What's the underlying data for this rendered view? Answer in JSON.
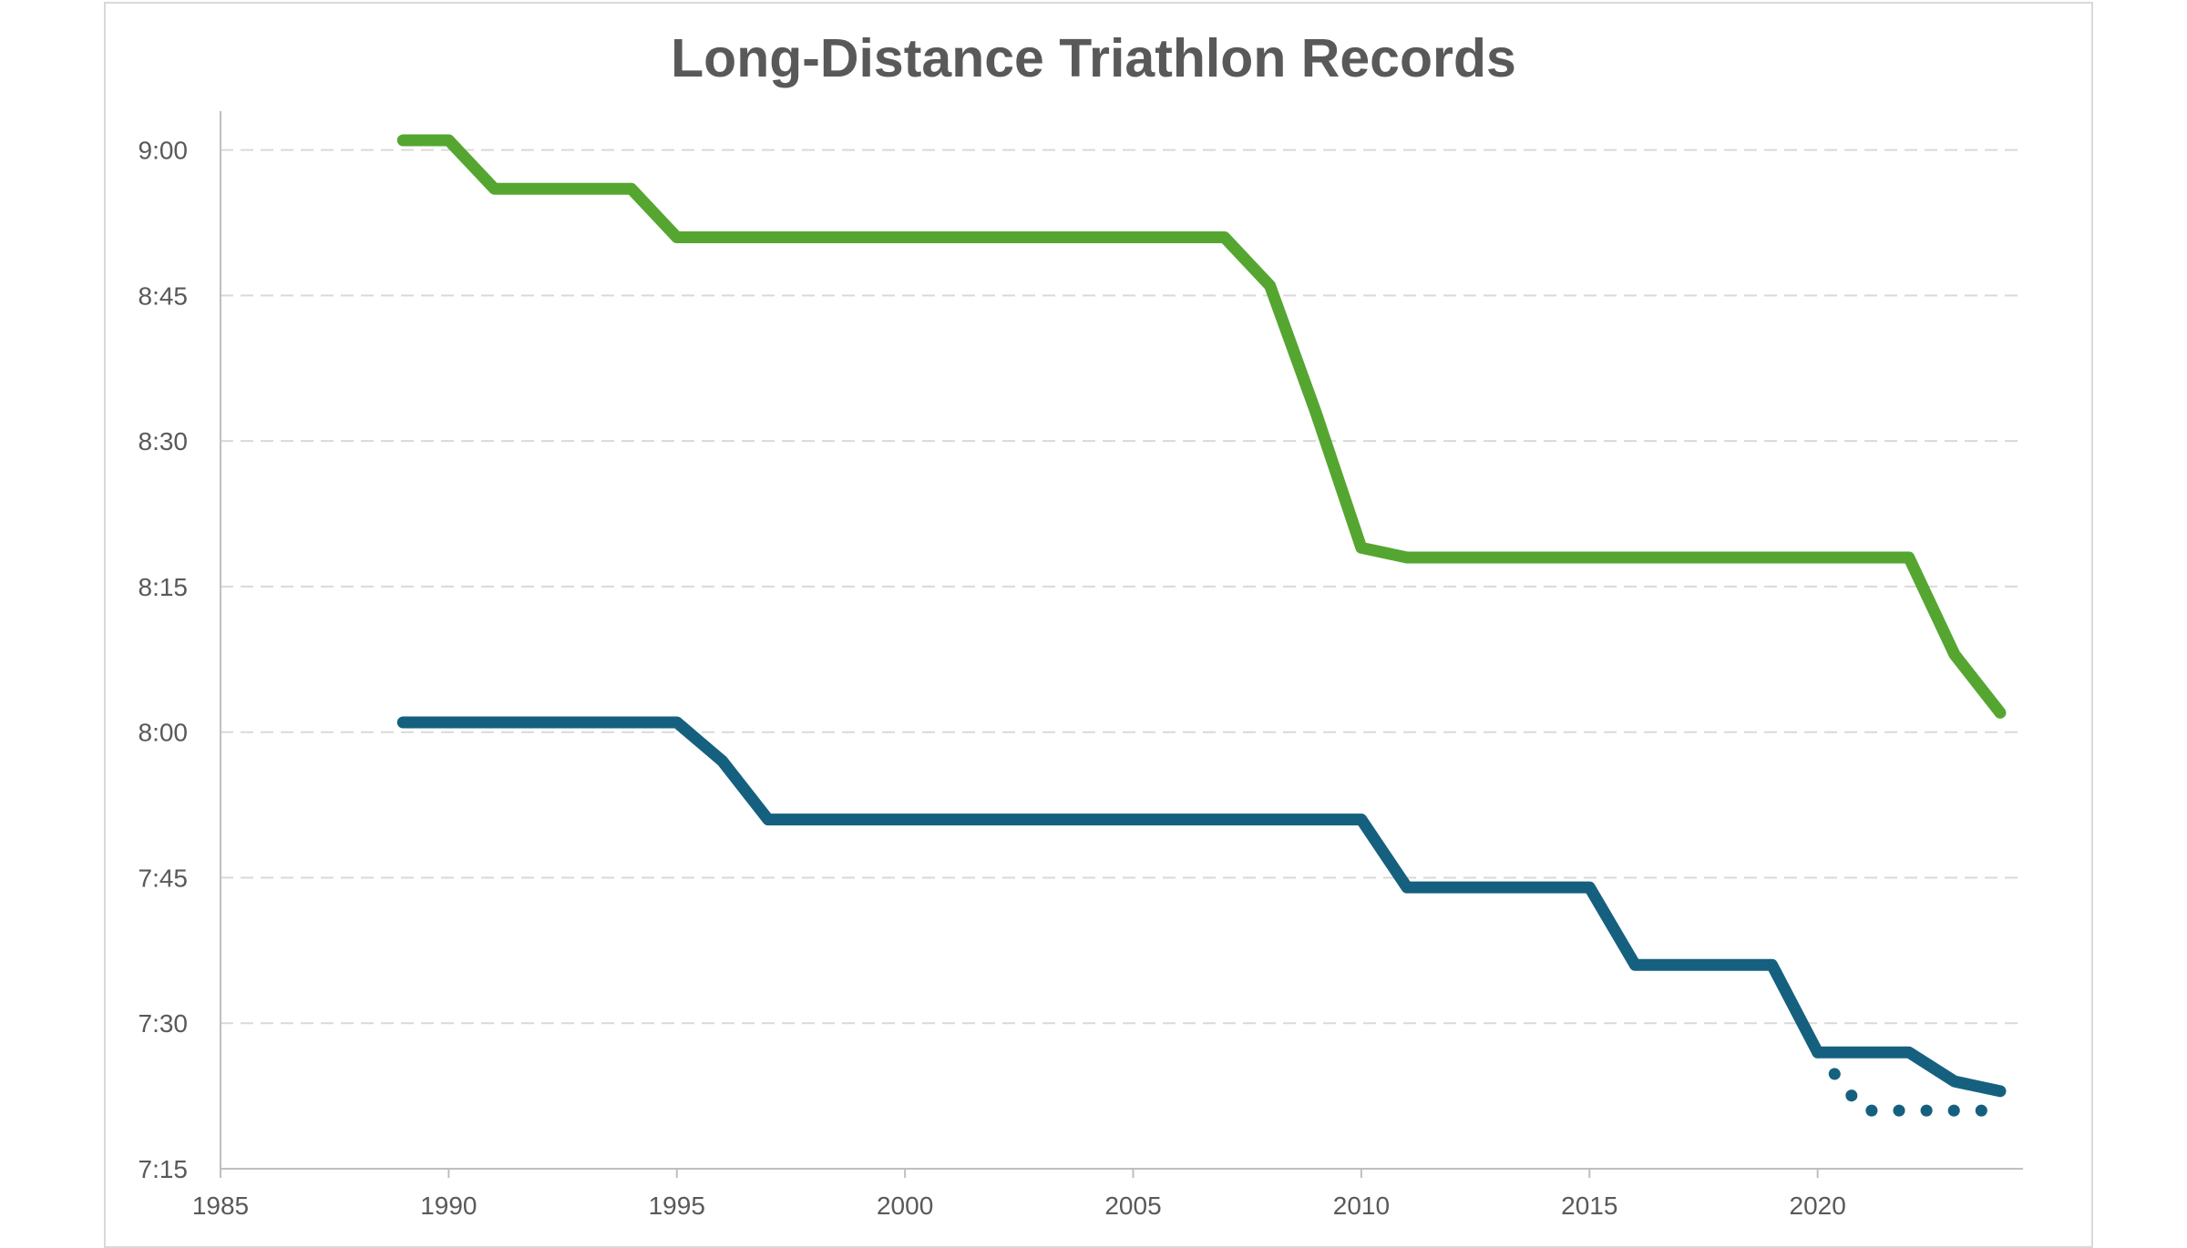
{
  "chart_data": {
    "type": "line",
    "title": "Long-Distance Triathlon Records",
    "xlabel": "",
    "ylabel": "",
    "xlim": [
      1985,
      2024.5
    ],
    "ylim": [
      "7:15",
      "9:04"
    ],
    "x_ticks": [
      "1985",
      "1990",
      "1995",
      "2000",
      "2005",
      "2010",
      "2015",
      "2020"
    ],
    "y_ticks": [
      "7:15",
      "7:30",
      "7:45",
      "8:00",
      "8:15",
      "8:30",
      "8:45",
      "9:00"
    ],
    "grid": "horizontal dashed",
    "legend": "none",
    "series": [
      {
        "color": "#54a630",
        "style": "solid",
        "x": [
          1989,
          1990,
          1991,
          1992,
          1993,
          1994,
          1995,
          1996,
          1997,
          1998,
          1999,
          2000,
          2001,
          2002,
          2003,
          2004,
          2005,
          2006,
          2007,
          2008,
          2009,
          2010,
          2011,
          2012,
          2013,
          2014,
          2015,
          2016,
          2017,
          2018,
          2019,
          2020,
          2021,
          2022,
          2023,
          2024
        ],
        "y": [
          "9:01",
          "9:01",
          "8:56",
          "8:56",
          "8:56",
          "8:56",
          "8:51",
          "8:51",
          "8:51",
          "8:51",
          "8:51",
          "8:51",
          "8:51",
          "8:51",
          "8:51",
          "8:51",
          "8:51",
          "8:51",
          "8:51",
          "8:46",
          "8:33",
          "8:19",
          "8:18",
          "8:18",
          "8:18",
          "8:18",
          "8:18",
          "8:18",
          "8:18",
          "8:18",
          "8:18",
          "8:18",
          "8:18",
          "8:18",
          "8:08",
          "8:02"
        ]
      },
      {
        "color": "#16607f",
        "style": "solid",
        "x": [
          1989,
          1990,
          1991,
          1992,
          1993,
          1994,
          1995,
          1996,
          1997,
          1998,
          1999,
          2000,
          2001,
          2002,
          2003,
          2004,
          2005,
          2006,
          2007,
          2008,
          2009,
          2010,
          2011,
          2012,
          2013,
          2014,
          2015,
          2016,
          2017,
          2018,
          2019,
          2020,
          2021,
          2022,
          2023,
          2024
        ],
        "y": [
          "8:01",
          "8:01",
          "8:01",
          "8:01",
          "8:01",
          "8:01",
          "8:01",
          "7:57",
          "7:51",
          "7:51",
          "7:51",
          "7:51",
          "7:51",
          "7:51",
          "7:51",
          "7:51",
          "7:51",
          "7:51",
          "7:51",
          "7:51",
          "7:51",
          "7:51",
          "7:44",
          "7:44",
          "7:44",
          "7:44",
          "7:44",
          "7:36",
          "7:36",
          "7:36",
          "7:36",
          "7:27",
          "7:27",
          "7:27",
          "7:24",
          "7:23"
        ]
      },
      {
        "color": "#16607f",
        "style": "dotted",
        "x": [
          2020,
          2021,
          2022,
          2023,
          2024
        ],
        "y": [
          "7:27",
          "7:21",
          "7:21",
          "7:21",
          "7:21"
        ]
      }
    ]
  }
}
